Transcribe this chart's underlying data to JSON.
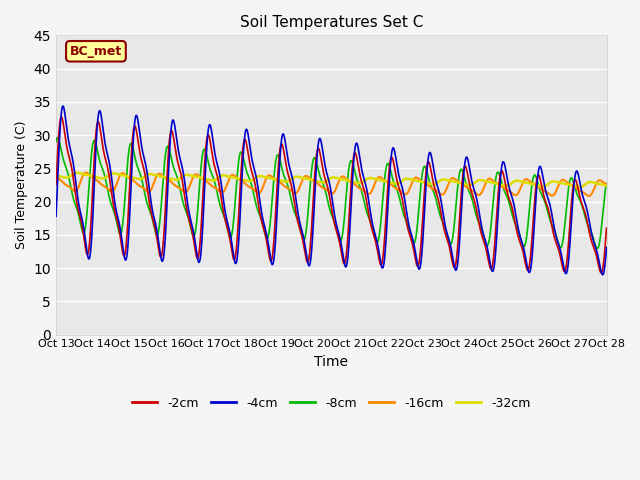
{
  "title": "Soil Temperatures Set C",
  "xlabel": "Time",
  "ylabel": "Soil Temperature (C)",
  "ylim": [
    0,
    45
  ],
  "xlim": [
    0,
    360
  ],
  "tick_labels": [
    "Oct 13",
    "Oct 14",
    "Oct 15",
    "Oct 16",
    "Oct 17",
    "Oct 18",
    "Oct 19",
    "Oct 20",
    "Oct 21",
    "Oct 22",
    "Oct 23",
    "Oct 24",
    "Oct 25",
    "Oct 26",
    "Oct 27",
    "Oct 28"
  ],
  "tick_positions": [
    0,
    24,
    48,
    72,
    96,
    120,
    144,
    168,
    192,
    216,
    240,
    264,
    288,
    312,
    336,
    360
  ],
  "colors": {
    "-2cm": "#cc0000",
    "-4cm": "#0000cc",
    "-8cm": "#00bb00",
    "-16cm": "#ff8800",
    "-32cm": "#dddd00"
  },
  "annotation_text": "BC_met",
  "annotation_color": "#8b0000",
  "annotation_bg": "#ffff99",
  "background_color": "#e8e8e8",
  "plot_bg": "#e8e8e8",
  "fig_bg": "#f5f5f5",
  "grid_color": "#ffffff",
  "yticks": [
    0,
    5,
    10,
    15,
    20,
    25,
    30,
    35,
    40,
    45
  ]
}
